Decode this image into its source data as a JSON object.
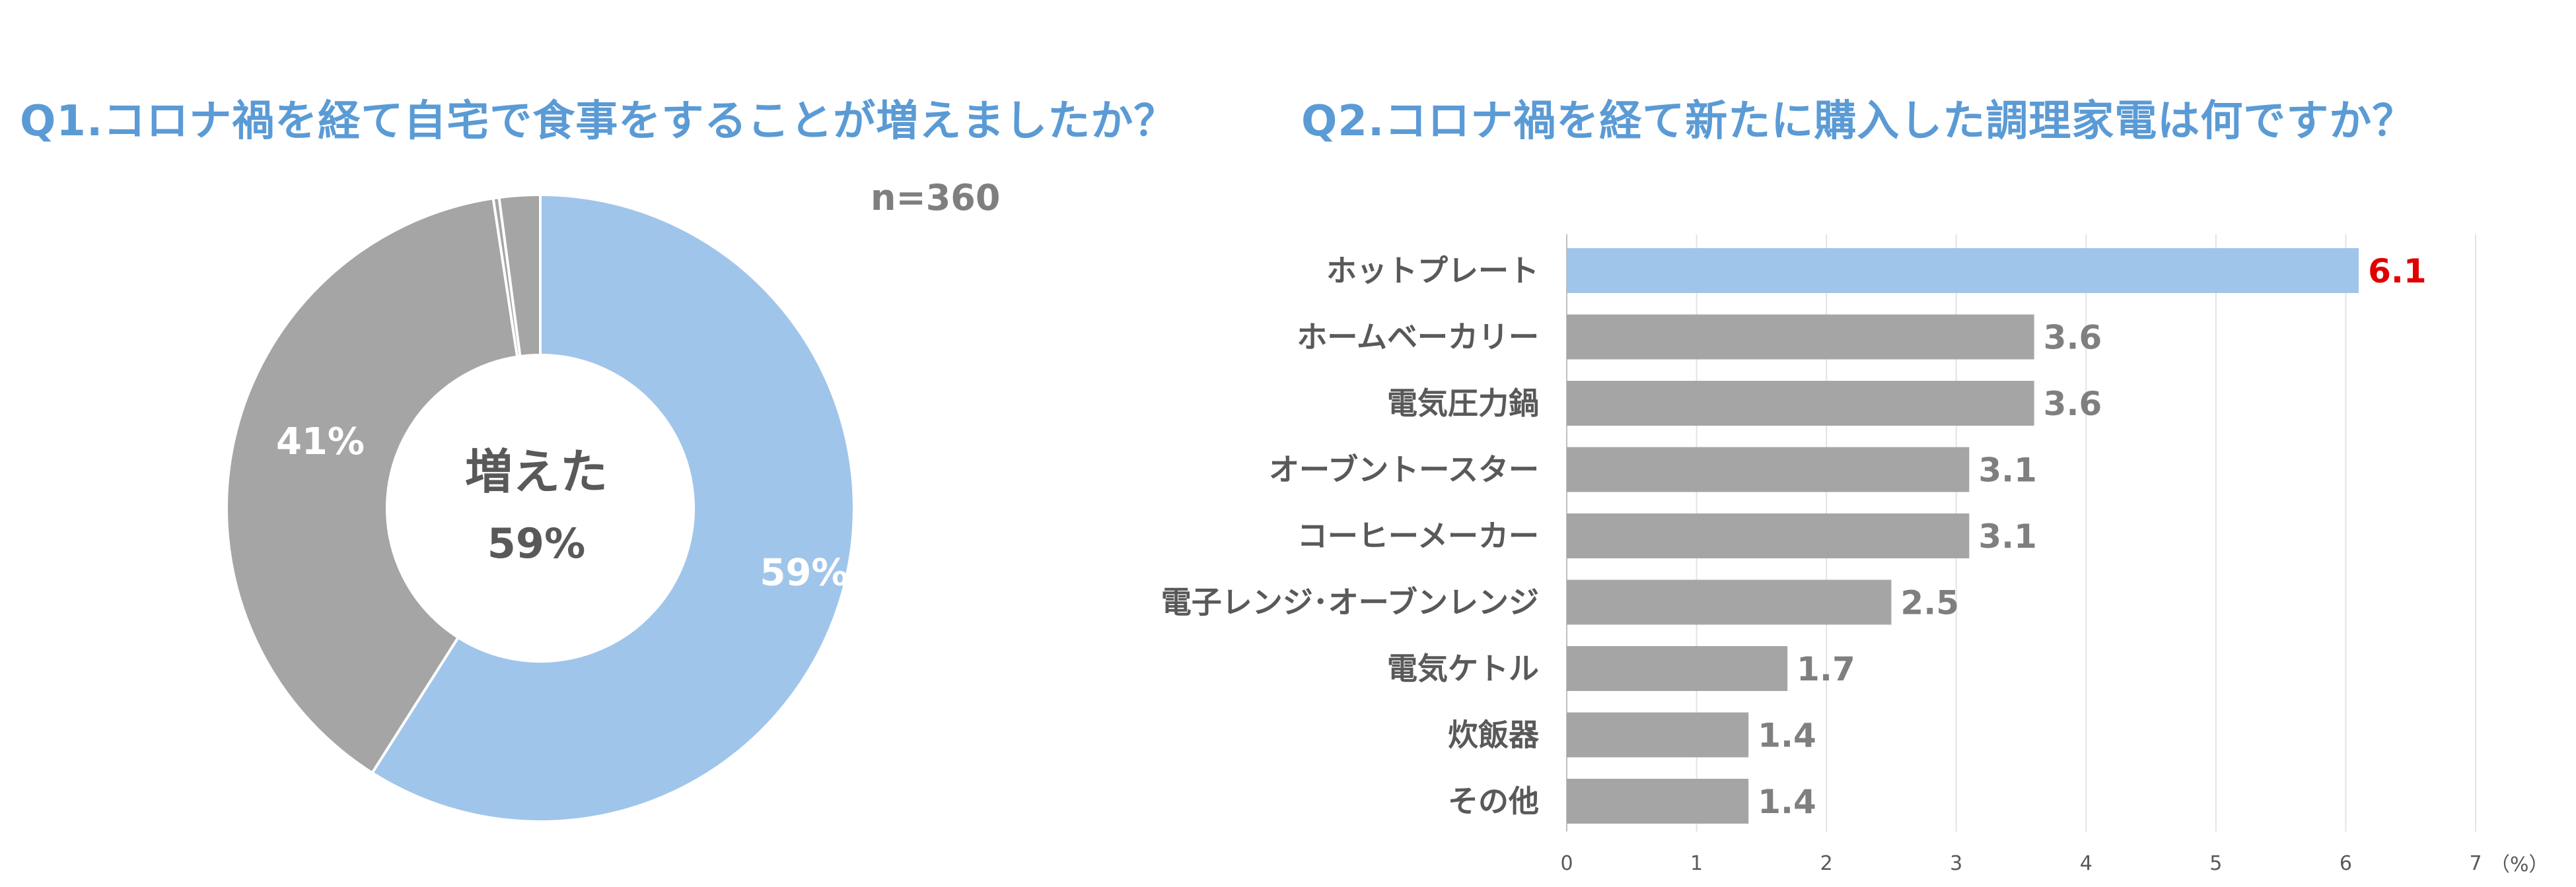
{
  "chart_data": [
    {
      "type": "pie",
      "title": "Q1.コロナ禍を経て自宅で食事をすることが増えましたか？",
      "sample_size": "n=360",
      "center_label": "増えた",
      "center_value": "59%",
      "slices": [
        {
          "value": 59,
          "label": "59%",
          "color": "#a0c5ea"
        },
        {
          "value": 38.6,
          "label": "",
          "color": "#a5a5a5"
        },
        {
          "value": 0.3,
          "label": "",
          "color": "#a5a5a5"
        },
        {
          "value": 2.1,
          "label": "",
          "color": "#a5a5a5"
        }
      ],
      "extra_labels": {
        "gray": "41%"
      }
    },
    {
      "type": "bar",
      "orientation": "horizontal",
      "title": "Q2.コロナ禍を経て新たに購入した調理家電は何ですか？",
      "categories": [
        "ホットプレート",
        "ホームベーカリー",
        "電気圧力鍋",
        "オーブントースター",
        "コーヒーメーカー",
        "電子レンジ･オーブンレンジ",
        "電気ケトル",
        "炊飯器",
        "その他"
      ],
      "values": [
        6.1,
        3.6,
        3.6,
        3.1,
        3.1,
        2.5,
        1.7,
        1.4,
        1.4
      ],
      "value_labels": [
        "6.1",
        "3.6",
        "3.6",
        "3.1",
        "3.1",
        "2.5",
        "1.7",
        "1.4",
        "1.4"
      ],
      "xlim": [
        0,
        7
      ],
      "xticks": [
        "0",
        "1",
        "2",
        "3",
        "4",
        "5",
        "6",
        "7"
      ],
      "xunit": "（%）",
      "highlight_index": 0,
      "colors": {
        "highlight": "#a0c5ea",
        "default": "#a5a5a5",
        "highlight_label": "#e00000"
      },
      "grid": true
    }
  ]
}
